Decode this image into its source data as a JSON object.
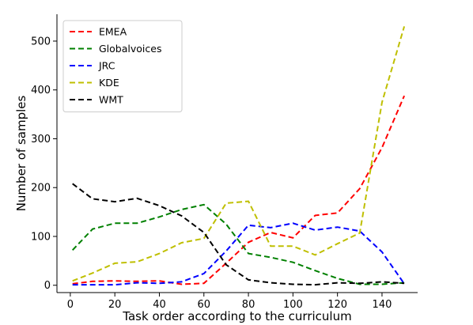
{
  "chart_data": {
    "type": "line",
    "xlabel": "Task order according to the curriculum",
    "ylabel": "Number of samples",
    "xlim": [
      -6,
      156
    ],
    "ylim": [
      -15,
      555
    ],
    "xticks": [
      0,
      20,
      40,
      60,
      80,
      100,
      120,
      140
    ],
    "yticks": [
      0,
      100,
      200,
      300,
      400,
      500
    ],
    "grid": false,
    "legend_position": "upper-left",
    "x": [
      1,
      10,
      20,
      30,
      40,
      50,
      60,
      70,
      80,
      90,
      100,
      110,
      120,
      130,
      140,
      150
    ],
    "series": [
      {
        "name": "EMEA",
        "color": "#ff0000",
        "values": [
          3,
          8,
          9,
          8,
          9,
          2,
          4,
          45,
          88,
          108,
          97,
          143,
          148,
          198,
          282,
          388
        ]
      },
      {
        "name": "Globalvoices",
        "color": "#008000",
        "values": [
          72,
          115,
          127,
          127,
          140,
          155,
          165,
          125,
          65,
          57,
          47,
          30,
          14,
          2,
          2,
          5
        ]
      },
      {
        "name": "JRC",
        "color": "#0000ff",
        "values": [
          1,
          1,
          1,
          5,
          4,
          7,
          24,
          70,
          123,
          118,
          127,
          113,
          119,
          111,
          68,
          3
        ]
      },
      {
        "name": "KDE",
        "color": "#bfbf00",
        "values": [
          9,
          25,
          45,
          48,
          65,
          87,
          96,
          168,
          172,
          80,
          80,
          62,
          85,
          107,
          375,
          530
        ]
      },
      {
        "name": "WMT",
        "color": "#000000",
        "values": [
          208,
          177,
          171,
          178,
          163,
          142,
          108,
          42,
          11,
          5,
          2,
          1,
          5,
          4,
          7,
          4
        ]
      }
    ]
  }
}
